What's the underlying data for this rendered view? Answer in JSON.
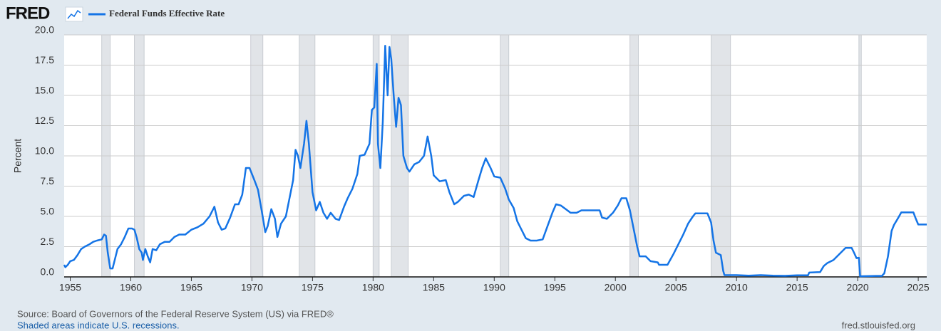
{
  "chart_data": {
    "type": "line",
    "logo": "FRED",
    "ylabel": "Percent",
    "source": "Source: Board of Governors of the Federal Reserve System (US) via FRED®",
    "note": "Shaded areas indicate U.S. recessions.",
    "site": "fred.stlouisfed.org",
    "xlim": [
      1954.5,
      2025.7
    ],
    "xticks": [
      1955,
      1960,
      1965,
      1970,
      1975,
      1980,
      1985,
      1990,
      1995,
      2000,
      2005,
      2010,
      2015,
      2020,
      2025
    ],
    "ylim": [
      0,
      20
    ],
    "yticks": [
      {
        "value": 0,
        "label": "0.0"
      },
      2.5,
      {
        "value": 5,
        "label": "5.0"
      },
      7.5,
      {
        "value": 10,
        "label": "10.0"
      },
      12.5,
      {
        "value": 15,
        "label": "15.0"
      },
      17.5,
      {
        "value": 20,
        "label": "20.0"
      }
    ],
    "grid": true,
    "recessions": [
      [
        1957.6,
        1958.3
      ],
      [
        1960.3,
        1961.1
      ],
      [
        1969.9,
        1970.9
      ],
      [
        1973.9,
        1975.2
      ],
      [
        1980.0,
        1980.5
      ],
      [
        1981.5,
        1982.9
      ],
      [
        1990.5,
        1991.2
      ],
      [
        2001.2,
        2001.9
      ],
      [
        2007.9,
        2009.5
      ],
      [
        2020.1,
        2020.3
      ]
    ],
    "recession_color": "#e1e4e8",
    "series": [
      {
        "name": "Federal Funds Effective Rate",
        "color": "#1474e6",
        "x": [
          1954.5,
          1954.6,
          1954.8,
          1955.0,
          1955.3,
          1955.6,
          1955.9,
          1956.2,
          1956.6,
          1956.9,
          1957.2,
          1957.6,
          1957.8,
          1957.95,
          1958.1,
          1958.3,
          1958.5,
          1958.7,
          1958.9,
          1959.2,
          1959.5,
          1959.8,
          1960.1,
          1960.3,
          1960.5,
          1960.7,
          1960.9,
          1961.0,
          1961.2,
          1961.4,
          1961.6,
          1961.8,
          1962.1,
          1962.4,
          1962.8,
          1963.2,
          1963.6,
          1964.0,
          1964.5,
          1965.0,
          1965.5,
          1966.0,
          1966.5,
          1966.9,
          1967.2,
          1967.5,
          1967.8,
          1968.2,
          1968.6,
          1968.9,
          1969.2,
          1969.5,
          1969.8,
          1970.2,
          1970.5,
          1970.8,
          1971.1,
          1971.3,
          1971.6,
          1971.9,
          1972.1,
          1972.4,
          1972.8,
          1973.1,
          1973.4,
          1973.6,
          1973.8,
          1974.0,
          1974.3,
          1974.5,
          1974.7,
          1975.0,
          1975.3,
          1975.6,
          1975.9,
          1976.2,
          1976.5,
          1976.9,
          1977.2,
          1977.6,
          1977.9,
          1978.3,
          1978.7,
          1978.9,
          1979.3,
          1979.7,
          1979.9,
          1980.1,
          1980.3,
          1980.4,
          1980.6,
          1980.8,
          1981.0,
          1981.2,
          1981.35,
          1981.5,
          1981.7,
          1981.9,
          1982.1,
          1982.3,
          1982.5,
          1982.8,
          1983.0,
          1983.4,
          1983.8,
          1984.2,
          1984.5,
          1984.8,
          1985.0,
          1985.5,
          1986.0,
          1986.3,
          1986.7,
          1987.0,
          1987.5,
          1987.9,
          1988.3,
          1988.7,
          1989.0,
          1989.3,
          1989.7,
          1990.0,
          1990.5,
          1990.9,
          1991.2,
          1991.6,
          1991.9,
          1992.2,
          1992.6,
          1993.0,
          1993.5,
          1994.0,
          1994.4,
          1994.8,
          1995.1,
          1995.5,
          1995.9,
          1996.3,
          1996.8,
          1997.2,
          1997.7,
          1998.2,
          1998.7,
          1998.9,
          1999.3,
          1999.8,
          2000.2,
          2000.5,
          2000.9,
          2001.2,
          2001.5,
          2001.8,
          2002.0,
          2002.5,
          2002.9,
          2003.5,
          2003.6,
          2004.3,
          2004.8,
          2005.2,
          2005.6,
          2006.0,
          2006.4,
          2006.6,
          2007.6,
          2007.9,
          2008.1,
          2008.3,
          2008.7,
          2008.9,
          2009.0,
          2010.0,
          2011.0,
          2012.0,
          2013.0,
          2014.0,
          2015.0,
          2015.9,
          2016.0,
          2016.9,
          2017.2,
          2017.5,
          2018.0,
          2018.5,
          2019.0,
          2019.5,
          2019.7,
          2019.9,
          2020.1,
          2020.2,
          2021.5,
          2022.0,
          2022.2,
          2022.5,
          2022.8,
          2023.0,
          2023.3,
          2023.6,
          2024.6,
          2024.8,
          2025.0,
          2025.7
        ],
        "values": [
          1.0,
          0.8,
          1.0,
          1.3,
          1.4,
          1.8,
          2.3,
          2.5,
          2.7,
          2.9,
          3.0,
          3.1,
          3.5,
          3.4,
          2.0,
          0.7,
          0.7,
          1.5,
          2.3,
          2.7,
          3.3,
          4.0,
          4.0,
          3.9,
          3.2,
          2.3,
          2.0,
          1.4,
          2.3,
          1.7,
          1.2,
          2.3,
          2.2,
          2.7,
          2.9,
          2.9,
          3.3,
          3.5,
          3.5,
          3.9,
          4.1,
          4.4,
          5.0,
          5.8,
          4.5,
          3.9,
          4.0,
          4.9,
          6.0,
          6.0,
          6.8,
          9.0,
          9.0,
          8.0,
          7.2,
          5.5,
          3.7,
          4.2,
          5.6,
          4.8,
          3.3,
          4.4,
          5.0,
          6.5,
          8.0,
          10.5,
          10.0,
          9.0,
          11.0,
          12.9,
          11.0,
          7.0,
          5.5,
          6.2,
          5.3,
          4.8,
          5.3,
          4.8,
          4.7,
          5.8,
          6.5,
          7.3,
          8.5,
          10.0,
          10.1,
          11.0,
          13.8,
          14.0,
          17.6,
          11.0,
          9.0,
          12.8,
          19.1,
          15.0,
          19.0,
          18.0,
          15.0,
          12.4,
          14.8,
          14.2,
          10.0,
          9.0,
          8.7,
          9.3,
          9.5,
          10.0,
          11.6,
          10.0,
          8.4,
          7.9,
          8.0,
          7.0,
          6.0,
          6.2,
          6.7,
          6.8,
          6.6,
          8.0,
          9.0,
          9.8,
          9.0,
          8.3,
          8.2,
          7.3,
          6.4,
          5.7,
          4.6,
          4.0,
          3.2,
          3.0,
          3.0,
          3.1,
          4.2,
          5.3,
          6.0,
          5.9,
          5.6,
          5.3,
          5.3,
          5.5,
          5.5,
          5.5,
          5.5,
          4.9,
          4.8,
          5.3,
          5.9,
          6.5,
          6.5,
          5.5,
          4.0,
          2.5,
          1.7,
          1.7,
          1.3,
          1.2,
          1.0,
          1.0,
          1.9,
          2.7,
          3.5,
          4.4,
          5.0,
          5.25,
          5.25,
          4.5,
          3.0,
          2.0,
          1.8,
          0.5,
          0.15,
          0.15,
          0.1,
          0.15,
          0.1,
          0.09,
          0.13,
          0.13,
          0.36,
          0.4,
          0.9,
          1.15,
          1.4,
          1.9,
          2.4,
          2.4,
          2.0,
          1.55,
          1.58,
          0.05,
          0.08,
          0.08,
          0.3,
          1.7,
          3.8,
          4.3,
          4.8,
          5.33,
          5.33,
          4.8,
          4.33,
          4.33
        ]
      }
    ]
  }
}
